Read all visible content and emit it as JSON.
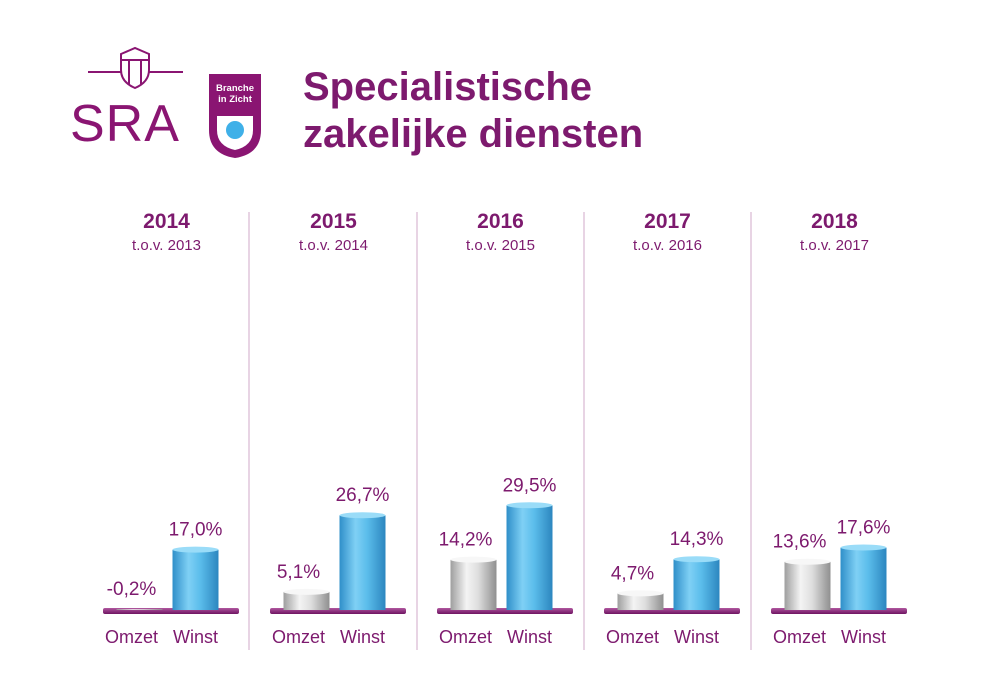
{
  "logo": {
    "brand": "SRA",
    "badge_line1": "Branche",
    "badge_line2": "in Zicht"
  },
  "title": {
    "line1": "Specialistische",
    "line2": "zakelijke diensten"
  },
  "colors": {
    "purple": "#7d1a6e",
    "winst_blue": "#4bb4e6",
    "omzet_gray": "#c8c8c8",
    "divider": "#d9b8d3"
  },
  "chart_data": {
    "type": "bar",
    "categories": [
      "Omzet",
      "Winst"
    ],
    "ylim": [
      -1,
      32
    ],
    "groups": [
      {
        "year": "2014",
        "comparison": "t.o.v. 2013",
        "values": [
          -0.2,
          17.0
        ],
        "labels": [
          "-0,2%",
          "17,0%"
        ]
      },
      {
        "year": "2015",
        "comparison": "t.o.v. 2014",
        "values": [
          5.1,
          26.7
        ],
        "labels": [
          "5,1%",
          "26,7%"
        ]
      },
      {
        "year": "2016",
        "comparison": "t.o.v. 2015",
        "values": [
          14.2,
          29.5
        ],
        "labels": [
          "14,2%",
          "29,5%"
        ]
      },
      {
        "year": "2017",
        "comparison": "t.o.v. 2016",
        "values": [
          4.7,
          14.3
        ],
        "labels": [
          "4,7%",
          "14,3%"
        ]
      },
      {
        "year": "2018",
        "comparison": "t.o.v. 2017",
        "values": [
          13.6,
          17.6
        ],
        "labels": [
          "13,6%",
          "17,6%"
        ]
      }
    ]
  }
}
